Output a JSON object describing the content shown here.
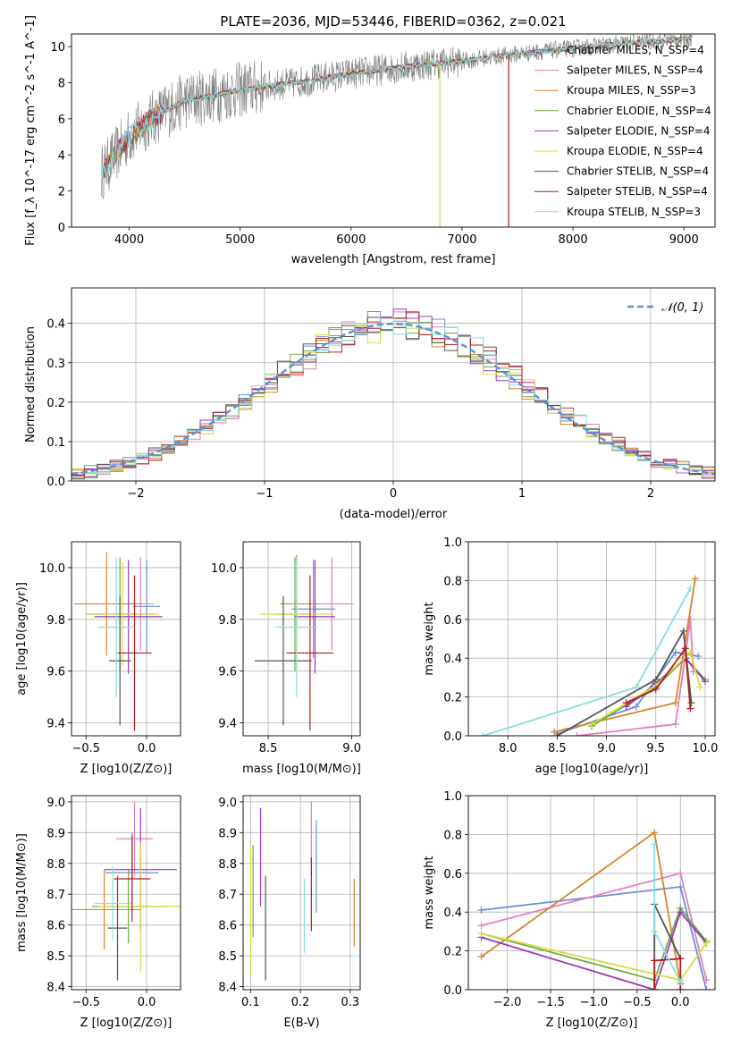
{
  "figure": {
    "title": "PLATE=2036, MJD=53446, FIBERID=0362, z=0.021"
  },
  "model_names": [
    "Chabrier MILES",
    "Salpeter MILES",
    "Kroupa MILES",
    "Chabrier ELODIE",
    "Salpeter ELODIE",
    "Kroupa ELODIE",
    "Chabrier STELIB",
    "Salpeter STELIB",
    "Kroupa STELIB"
  ],
  "model_colors": [
    "#6a8fd8",
    "#e27fbf",
    "#d98326",
    "#6eaa47",
    "#9a38b8",
    "#d8dc3e",
    "#555555",
    "#b31c1c",
    "#88dde0"
  ],
  "chart_data": [
    {
      "type": "line",
      "title": "PLATE=2036, MJD=53446, FIBERID=0362, z=0.021",
      "xlabel": "wavelength [Angstrom, rest frame]",
      "ylabel": "Flux [f_λ 10^-17 erg cm^-2 s^-1 A^-1]",
      "xlim": [
        3480,
        9280
      ],
      "ylim": [
        0,
        10.7
      ],
      "xticks": [
        4000,
        5000,
        6000,
        7000,
        8000,
        9000
      ],
      "yticks": [
        0,
        2,
        4,
        6,
        8,
        10
      ],
      "legend_position": "top-right",
      "legend": [
        "Chabrier MILES, N_SSP=4",
        "Salpeter MILES, N_SSP=4",
        "Kroupa MILES, N_SSP=3",
        "Chabrier ELODIE, N_SSP=4",
        "Salpeter ELODIE, N_SSP=4",
        "Kroupa ELODIE, N_SSP=4",
        "Chabrier STELIB, N_SSP=4",
        "Salpeter STELIB, N_SSP=4",
        "Kroupa STELIB, N_SSP=3"
      ],
      "data_color": "#808080",
      "continuum": {
        "x": [
          3750,
          3850,
          4000,
          4200,
          4500,
          5000,
          5500,
          6000,
          6500,
          7000,
          7500,
          8000,
          8500,
          9000,
          9080
        ],
        "y": [
          3.0,
          3.8,
          5.0,
          6.0,
          7.0,
          7.6,
          8.0,
          8.5,
          8.9,
          9.2,
          9.6,
          9.9,
          10.2,
          10.4,
          10.5
        ]
      },
      "dips": [
        {
          "x": 6800,
          "y": 0.0
        },
        {
          "x": 7420,
          "y": 0.0
        }
      ]
    },
    {
      "type": "histogram",
      "xlabel": "(data-model)/error",
      "ylabel": "Normed distribution",
      "xlim": [
        -2.5,
        2.5
      ],
      "ylim": [
        0,
        0.49
      ],
      "xticks": [
        -2,
        -1,
        0,
        1,
        2
      ],
      "yticks": [
        0.0,
        0.1,
        0.2,
        0.3,
        0.4
      ],
      "grid": true,
      "legend_position": "top-right",
      "reference_curve": {
        "name": "𝒩(0, 1)",
        "color": "#5b8fd6",
        "mean": 0,
        "sigma": 1
      }
    },
    {
      "type": "error-cross",
      "xlabel": "Z [log10(Z/Z⊙)]",
      "ylabel": "age  [log10(age/yr)]",
      "xlim": [
        -0.62,
        0.28
      ],
      "ylim": [
        9.35,
        10.1
      ],
      "xticks": [
        -0.5,
        0.0
      ],
      "yticks": [
        9.4,
        9.6,
        9.8,
        10.0
      ],
      "points": [
        {
          "x": 0.0,
          "y": 9.85,
          "xerr": 0.11,
          "yerr": 0.18
        },
        {
          "x": -0.05,
          "y": 9.86,
          "xerr": 0.11,
          "yerr": 0.18
        },
        {
          "x": -0.33,
          "y": 9.86,
          "xerr": 0.27,
          "yerr": 0.2
        },
        {
          "x": -0.22,
          "y": 9.82,
          "xerr": 0.28,
          "yerr": 0.22
        },
        {
          "x": -0.15,
          "y": 9.81,
          "xerr": 0.28,
          "yerr": 0.22
        },
        {
          "x": -0.2,
          "y": 9.82,
          "xerr": 0.3,
          "yerr": 0.2
        },
        {
          "x": -0.22,
          "y": 9.64,
          "xerr": 0.09,
          "yerr": 0.25
        },
        {
          "x": -0.1,
          "y": 9.67,
          "xerr": 0.14,
          "yerr": 0.3
        },
        {
          "x": -0.25,
          "y": 9.77,
          "xerr": 0.15,
          "yerr": 0.27
        }
      ]
    },
    {
      "type": "error-cross",
      "xlabel": "mass [log10(M/M⊙)]",
      "ylabel": "",
      "xlim": [
        8.35,
        9.05
      ],
      "ylim": [
        9.35,
        10.1
      ],
      "xticks": [
        8.5,
        9.0
      ],
      "yticks": [
        9.4,
        9.6,
        9.8,
        10.0
      ],
      "points": [
        {
          "x": 8.77,
          "y": 9.84,
          "xerr": 0.13,
          "yerr": 0.19
        },
        {
          "x": 8.88,
          "y": 9.86,
          "xerr": 0.13,
          "yerr": 0.18
        },
        {
          "x": 8.67,
          "y": 9.86,
          "xerr": 0.1,
          "yerr": 0.19
        },
        {
          "x": 8.66,
          "y": 9.82,
          "xerr": 0.12,
          "yerr": 0.22
        },
        {
          "x": 8.78,
          "y": 9.81,
          "xerr": 0.12,
          "yerr": 0.22
        },
        {
          "x": 8.67,
          "y": 9.82,
          "xerr": 0.22,
          "yerr": 0.21
        },
        {
          "x": 8.59,
          "y": 9.64,
          "xerr": 0.17,
          "yerr": 0.25
        },
        {
          "x": 8.75,
          "y": 9.67,
          "xerr": 0.14,
          "yerr": 0.3
        },
        {
          "x": 8.67,
          "y": 9.77,
          "xerr": 0.12,
          "yerr": 0.27
        }
      ]
    },
    {
      "type": "line",
      "xlabel": "age  [log10(age/yr)]",
      "ylabel": "mass weight",
      "xlim": [
        7.6,
        10.1
      ],
      "ylim": [
        0.0,
        1.0
      ],
      "xticks": [
        8.0,
        8.5,
        9.0,
        9.5,
        10.0
      ],
      "yticks": [
        0.0,
        0.2,
        0.4,
        0.6,
        0.8,
        1.0
      ],
      "grid": true,
      "series": [
        {
          "x": [
            8.5,
            9.3,
            9.7,
            9.93
          ],
          "y": [
            0.01,
            0.15,
            0.43,
            0.41
          ]
        },
        {
          "x": [
            8.7,
            9.7,
            9.85,
            9.88
          ],
          "y": [
            0.0,
            0.06,
            0.6,
            0.33
          ]
        },
        {
          "x": [
            8.47,
            9.7,
            9.9
          ],
          "y": [
            0.02,
            0.17,
            0.81
          ]
        },
        {
          "x": [
            8.85,
            9.5,
            9.8,
            10.0
          ],
          "y": [
            0.05,
            0.25,
            0.4,
            0.29
          ]
        },
        {
          "x": [
            9.2,
            9.5,
            9.8,
            10.0
          ],
          "y": [
            0.15,
            0.27,
            0.4,
            0.28
          ]
        },
        {
          "x": [
            8.85,
            9.5,
            9.85,
            9.95
          ],
          "y": [
            0.06,
            0.26,
            0.43,
            0.25
          ]
        },
        {
          "x": [
            8.5,
            9.5,
            9.78,
            9.86
          ],
          "y": [
            0.0,
            0.29,
            0.54,
            0.17
          ]
        },
        {
          "x": [
            9.2,
            9.5,
            9.8,
            9.85
          ],
          "y": [
            0.17,
            0.24,
            0.45,
            0.14
          ]
        },
        {
          "x": [
            7.75,
            9.3,
            9.85
          ],
          "y": [
            0.0,
            0.25,
            0.76
          ]
        }
      ]
    },
    {
      "type": "error-cross",
      "xlabel": "Z [log10(Z/Z⊙)]",
      "ylabel": "mass [log10(M/M⊙)]",
      "xlim": [
        -0.62,
        0.28
      ],
      "ylim": [
        8.39,
        9.02
      ],
      "xticks": [
        -0.5,
        0.0
      ],
      "yticks": [
        8.4,
        8.5,
        8.6,
        8.7,
        8.8,
        8.9,
        9.0
      ],
      "points": [
        {
          "x": -0.12,
          "y": 8.77,
          "xerr": 0.22,
          "yerr": 0.13
        },
        {
          "x": -0.1,
          "y": 8.88,
          "xerr": 0.15,
          "yerr": 0.12
        },
        {
          "x": -0.35,
          "y": 8.65,
          "xerr": 0.3,
          "yerr": 0.13
        },
        {
          "x": -0.15,
          "y": 8.66,
          "xerr": 0.3,
          "yerr": 0.12
        },
        {
          "x": -0.05,
          "y": 8.78,
          "xerr": 0.3,
          "yerr": 0.2
        },
        {
          "x": -0.05,
          "y": 8.66,
          "xerr": 0.35,
          "yerr": 0.21
        },
        {
          "x": -0.24,
          "y": 8.59,
          "xerr": 0.08,
          "yerr": 0.17
        },
        {
          "x": -0.12,
          "y": 8.75,
          "xerr": 0.15,
          "yerr": 0.14
        },
        {
          "x": -0.28,
          "y": 8.67,
          "xerr": 0.15,
          "yerr": 0.12
        }
      ]
    },
    {
      "type": "error-cross",
      "xlabel": "E(B-V)",
      "ylabel": "",
      "xlim": [
        0.085,
        0.32
      ],
      "ylim": [
        8.39,
        9.02
      ],
      "xticks": [
        0.1,
        0.2,
        0.3
      ],
      "yticks": [
        8.4,
        8.5,
        8.6,
        8.7,
        8.8,
        8.9,
        9.0
      ],
      "points": [
        {
          "x": 0.232,
          "y": 8.79,
          "xerr": 0.0,
          "yerr": 0.15
        },
        {
          "x": 0.222,
          "y": 8.88,
          "xerr": 0.0,
          "yerr": 0.12
        },
        {
          "x": 0.308,
          "y": 8.64,
          "xerr": 0.0,
          "yerr": 0.11
        },
        {
          "x": 0.105,
          "y": 8.71,
          "xerr": 0.0,
          "yerr": 0.15
        },
        {
          "x": 0.12,
          "y": 8.82,
          "xerr": 0.0,
          "yerr": 0.16
        },
        {
          "x": 0.1,
          "y": 8.65,
          "xerr": 0.0,
          "yerr": 0.21
        },
        {
          "x": 0.13,
          "y": 8.59,
          "xerr": 0.0,
          "yerr": 0.17
        },
        {
          "x": 0.222,
          "y": 8.7,
          "xerr": 0.0,
          "yerr": 0.12
        },
        {
          "x": 0.208,
          "y": 8.63,
          "xerr": 0.0,
          "yerr": 0.12
        }
      ]
    },
    {
      "type": "line",
      "xlabel": "Z [log10(Z/Z⊙)]",
      "ylabel": "mass weight",
      "xlim": [
        -2.45,
        0.4
      ],
      "ylim": [
        0.0,
        1.0
      ],
      "xticks": [
        -2.0,
        -1.5,
        -1.0,
        -0.5,
        0.0
      ],
      "yticks": [
        0.0,
        0.2,
        0.4,
        0.6,
        0.8,
        1.0
      ],
      "grid": true,
      "series": [
        {
          "x": [
            -2.3,
            0.0,
            0.3
          ],
          "y": [
            0.41,
            0.53,
            0.0
          ]
        },
        {
          "x": [
            -2.3,
            0.0,
            0.3
          ],
          "y": [
            0.33,
            0.6,
            0.05
          ]
        },
        {
          "x": [
            -2.3,
            -0.3,
            0.0
          ],
          "y": [
            0.17,
            0.81,
            0.03
          ]
        },
        {
          "x": [
            -2.3,
            -0.3,
            0.0,
            0.3
          ],
          "y": [
            0.29,
            0.05,
            0.42,
            0.25
          ]
        },
        {
          "x": [
            -2.3,
            -0.3,
            0.0,
            0.3
          ],
          "y": [
            0.27,
            0.0,
            0.4,
            0.24
          ]
        },
        {
          "x": [
            -2.3,
            0.0,
            0.3
          ],
          "y": [
            0.29,
            0.05,
            0.24
          ]
        },
        {
          "x": [
            -0.3,
            -0.3,
            0.0
          ],
          "y": [
            0.0,
            0.44,
            0.16
          ]
        },
        {
          "x": [
            -0.3,
            -0.3,
            0.0,
            0.0
          ],
          "y": [
            0.0,
            0.15,
            0.16,
            0.0
          ]
        },
        {
          "x": [
            -0.3,
            -0.3,
            0.0
          ],
          "y": [
            0.75,
            0.3,
            0.04
          ]
        }
      ]
    }
  ]
}
